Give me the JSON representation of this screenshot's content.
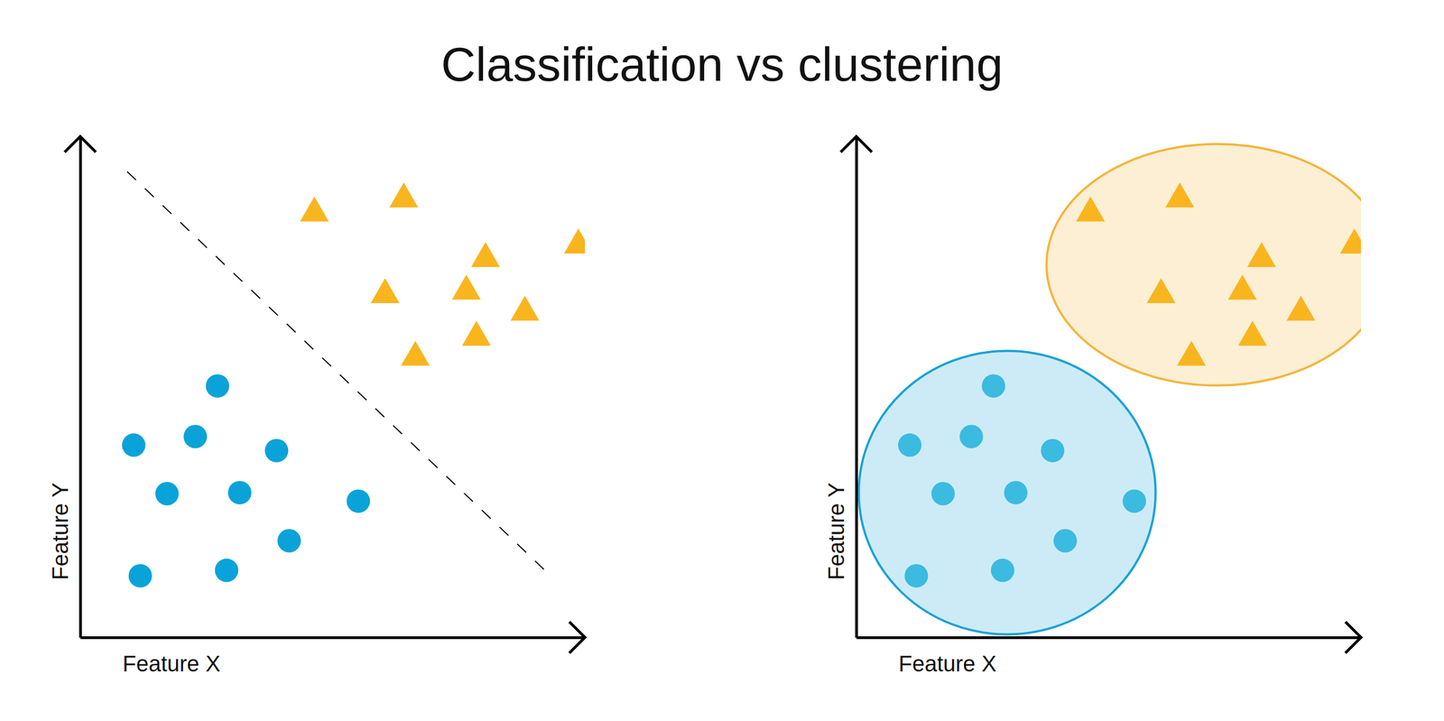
{
  "title": "Classification vs clustering",
  "chart_data": [
    {
      "type": "scatter",
      "x_label": "Feature X",
      "y_label": "Feature Y",
      "xlim": [
        0,
        100
      ],
      "ylim": [
        0,
        100
      ],
      "xticks": [],
      "yticks": [],
      "tick_labels": false,
      "series": [
        {
          "type": "scatter",
          "marker": "circle",
          "color": "#0aa3d9",
          "x": [
            27.2,
            10.6,
            22.8,
            38.9,
            17.2,
            31.6,
            55.1,
            41.4,
            11.9,
            29.0
          ],
          "values": [
            50.2,
            38.4,
            40.1,
            37.3,
            28.7,
            28.9,
            27.2,
            19.3,
            12.3,
            13.4
          ]
        },
        {
          "type": "scatter",
          "marker": "triangle",
          "color": "#f9b51e",
          "x": [
            46.4,
            64.1,
            80.3,
            98.7,
            60.4,
            76.5,
            88.1,
            78.5,
            66.4
          ],
          "values": [
            84.7,
            87.5,
            75.6,
            78.3,
            68.4,
            69.1,
            64.9,
            59.9,
            55.9
          ]
        },
        {
          "type": "line",
          "line_style": "dashed",
          "color": "#000000",
          "x": [
            9.3,
            93.2
          ],
          "values": [
            93.0,
            12.3
          ]
        }
      ]
    },
    {
      "type": "scatter",
      "x_label": "Feature X",
      "y_label": "Feature Y",
      "xlim": [
        0,
        100
      ],
      "ylim": [
        0,
        100
      ],
      "xticks": [],
      "yticks": [],
      "tick_labels": false,
      "clusters": [
        {
          "cx": 29.9,
          "cy": 28.9,
          "rx": 29.4,
          "ry": 28.3,
          "color": "#1aa3d6"
        },
        {
          "cx": 71.5,
          "cy": 74.4,
          "rx": 33.8,
          "ry": 24.1,
          "color": "#f3b63d"
        }
      ],
      "series": [
        {
          "type": "scatter",
          "marker": "circle",
          "color": "#3bbbe0",
          "x": [
            27.2,
            10.6,
            22.8,
            38.9,
            17.2,
            31.6,
            55.1,
            41.4,
            11.9,
            29.0
          ],
          "values": [
            50.2,
            38.4,
            40.1,
            37.3,
            28.7,
            28.9,
            27.2,
            19.3,
            12.3,
            13.4
          ]
        },
        {
          "type": "scatter",
          "marker": "triangle",
          "color": "#f9b51e",
          "x": [
            46.4,
            64.1,
            80.3,
            98.7,
            60.4,
            76.5,
            88.1,
            78.5,
            66.4
          ],
          "values": [
            84.7,
            87.5,
            75.6,
            78.3,
            68.4,
            69.1,
            64.9,
            59.9,
            55.9
          ]
        }
      ]
    }
  ]
}
